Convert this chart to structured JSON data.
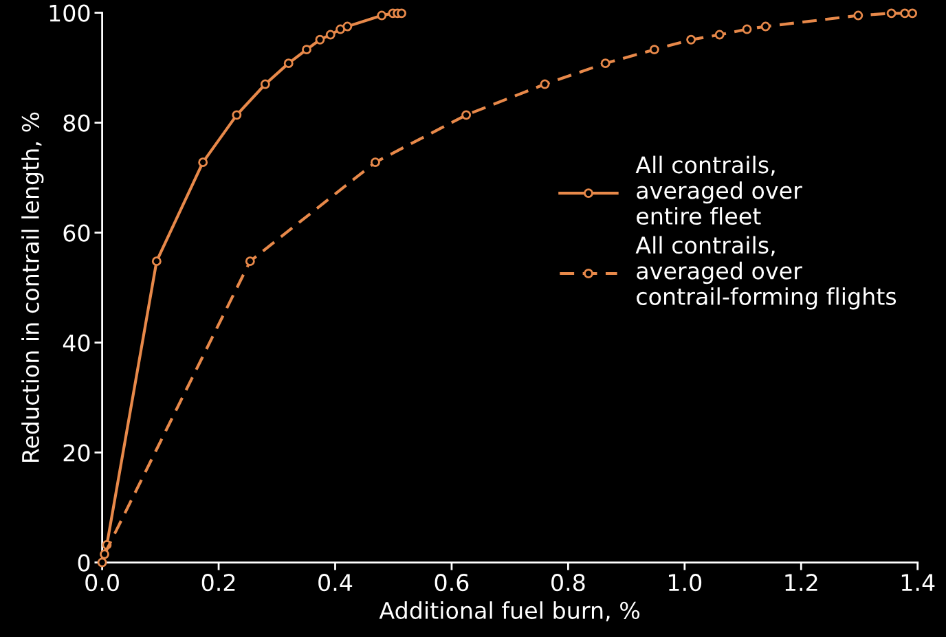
{
  "chart_data": {
    "type": "line",
    "xlabel": "Additional fuel burn, %",
    "ylabel": "Reduction in contrail length, %",
    "xlim": [
      0,
      1.4
    ],
    "xticks": [
      {
        "value": 0,
        "label": "0.0"
      },
      0.2,
      0.4,
      0.6,
      0.8,
      {
        "value": 1,
        "label": "1.0"
      },
      1.2,
      1.4
    ],
    "ylim": [
      0,
      100
    ],
    "yticks": [
      0,
      20,
      40,
      60,
      80,
      100
    ],
    "grid": false,
    "legend": "right",
    "marker": "circle",
    "series": [
      {
        "name": "All contrails,\naveraged over\nentire fleet",
        "color": "#e8894a",
        "line_style": "solid",
        "x": [
          0,
          0.008,
          0.0935,
          0.173,
          0.231,
          0.28,
          0.32,
          0.351,
          0.374,
          0.392,
          0.409,
          0.421,
          0.48,
          0.499,
          0.507,
          0.514
        ],
        "values": [
          0,
          3.2,
          54.8,
          72.8,
          81.4,
          87,
          90.8,
          93.3,
          95.1,
          96,
          97,
          97.5,
          99.5,
          99.9,
          99.9,
          99.9
        ]
      },
      {
        "name": "All contrails,\naveraged over\ncontrail-forming flights",
        "color": "#e8894a",
        "line_style": "dashed",
        "x": [
          0.004,
          0.254,
          0.469,
          0.625,
          0.76,
          0.864,
          0.948,
          1.011,
          1.06,
          1.107,
          1.139,
          1.298,
          1.355,
          1.378,
          1.391
        ],
        "values": [
          1.5,
          54.8,
          72.8,
          81.4,
          87,
          90.8,
          93.3,
          95.1,
          96,
          97,
          97.5,
          99.5,
          99.9,
          99.9,
          99.9
        ]
      }
    ]
  }
}
